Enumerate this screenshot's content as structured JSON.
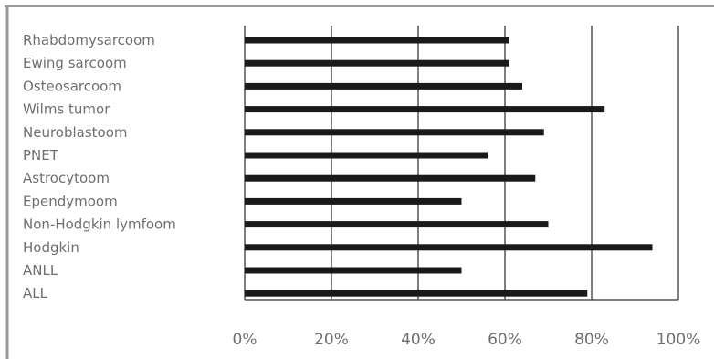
{
  "chart_data": {
    "type": "bar",
    "orientation": "horizontal",
    "categories": [
      "Rhabdomysarcoom",
      "Ewing sarcoom",
      "Osteosarcoom",
      "Wilms tumor",
      "Neuroblastoom",
      "PNET",
      "Astrocytoom",
      "Ependymoom",
      "Non-Hodgkin lymfoom",
      "Hodgkin",
      "ANLL",
      "ALL"
    ],
    "values": [
      61,
      61,
      64,
      83,
      69,
      56,
      67,
      50,
      70,
      94,
      50,
      79
    ],
    "xlim": [
      0,
      100
    ],
    "x_ticks": [
      "0%",
      "20%",
      "40%",
      "60%",
      "80%",
      "100%"
    ],
    "grid": "vertical",
    "legend": "none",
    "colors": {
      "bar": "#1a1a1a",
      "grid": "#555555",
      "label": "#6f6f6f",
      "frame": "#9a9a9a"
    }
  }
}
